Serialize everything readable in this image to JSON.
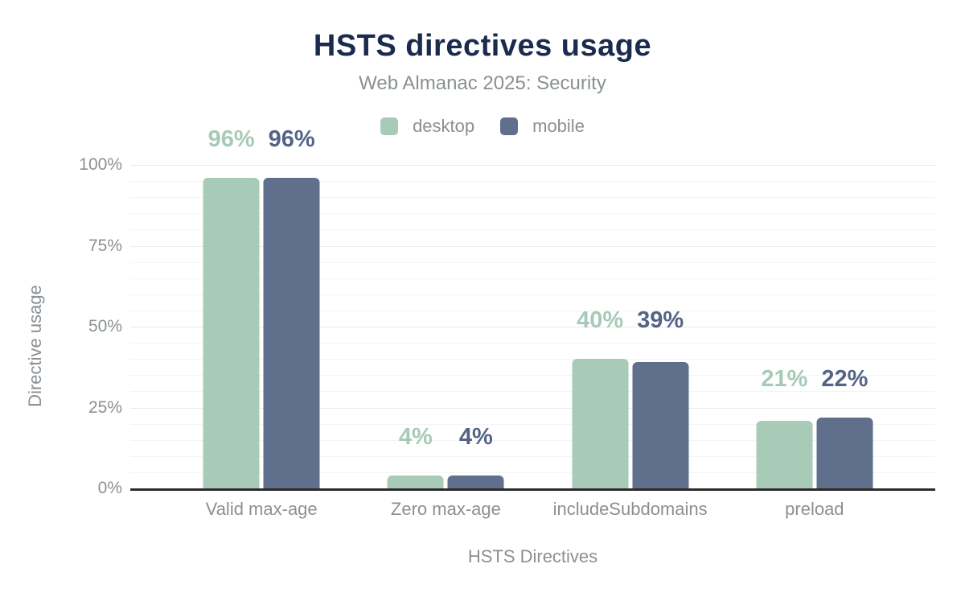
{
  "chart_data": {
    "type": "bar",
    "title": "HSTS directives usage",
    "subtitle": "Web Almanac 2025: Security",
    "xlabel": "HSTS Directives",
    "ylabel": "Directive usage",
    "categories": [
      "Valid max-age",
      "Zero max-age",
      "includeSubdomains",
      "preload"
    ],
    "series": [
      {
        "name": "desktop",
        "color": "#a8cbb8",
        "label_color": "#a6cab7",
        "values": [
          96,
          4,
          40,
          21
        ],
        "labels": [
          "96%",
          "4%",
          "40%",
          "21%"
        ]
      },
      {
        "name": "mobile",
        "color": "#60708c",
        "label_color": "#546486",
        "values": [
          96,
          4,
          39,
          22
        ],
        "labels": [
          "96%",
          "4%",
          "39%",
          "22%"
        ]
      }
    ],
    "ylim": [
      0,
      100
    ],
    "yticks": [
      {
        "value": 0,
        "label": "0%"
      },
      {
        "value": 25,
        "label": "25%"
      },
      {
        "value": 50,
        "label": "50%"
      },
      {
        "value": 75,
        "label": "75%"
      },
      {
        "value": 100,
        "label": "100%"
      }
    ],
    "grid": {
      "orientation": "horizontal",
      "minor_step": 5,
      "major_step": 25
    },
    "legend_position": "top"
  },
  "colors": {
    "background": "#ffffff",
    "title": "#1a2b4d",
    "text_muted": "#8a9094",
    "axis_line": "#2b2b2b",
    "grid_minor": "#f4f4f4",
    "grid_major": "#eaeaea"
  }
}
